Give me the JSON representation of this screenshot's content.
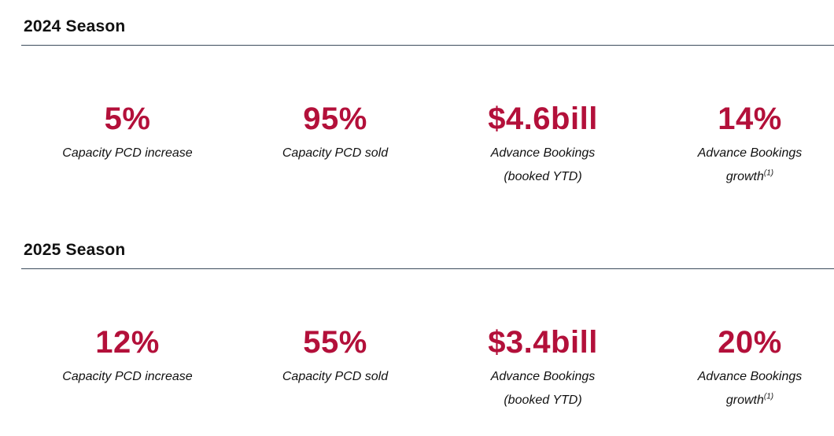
{
  "seasons": [
    {
      "title": "2024 Season",
      "metrics": [
        {
          "value": "5%",
          "label_lines": [
            "Capacity PCD increase"
          ],
          "footnote": ""
        },
        {
          "value": "95%",
          "label_lines": [
            "Capacity PCD sold"
          ],
          "footnote": ""
        },
        {
          "value": "$4.6bill",
          "label_lines": [
            "Advance Bookings",
            "(booked YTD)"
          ],
          "footnote": ""
        },
        {
          "value": "14%",
          "label_lines": [
            "Advance Bookings",
            "growth"
          ],
          "footnote": "(1)"
        }
      ]
    },
    {
      "title": "2025 Season",
      "metrics": [
        {
          "value": "12%",
          "label_lines": [
            "Capacity PCD increase"
          ],
          "footnote": ""
        },
        {
          "value": "55%",
          "label_lines": [
            "Capacity PCD sold"
          ],
          "footnote": ""
        },
        {
          "value": "$3.4bill",
          "label_lines": [
            "Advance Bookings",
            "(booked YTD)"
          ],
          "footnote": ""
        },
        {
          "value": "20%",
          "label_lines": [
            "Advance Bookings",
            "growth"
          ],
          "footnote": "(1)"
        }
      ]
    }
  ],
  "colors": {
    "accent": "#b3103a",
    "rule": "#3c4c5c",
    "text": "#111111"
  }
}
